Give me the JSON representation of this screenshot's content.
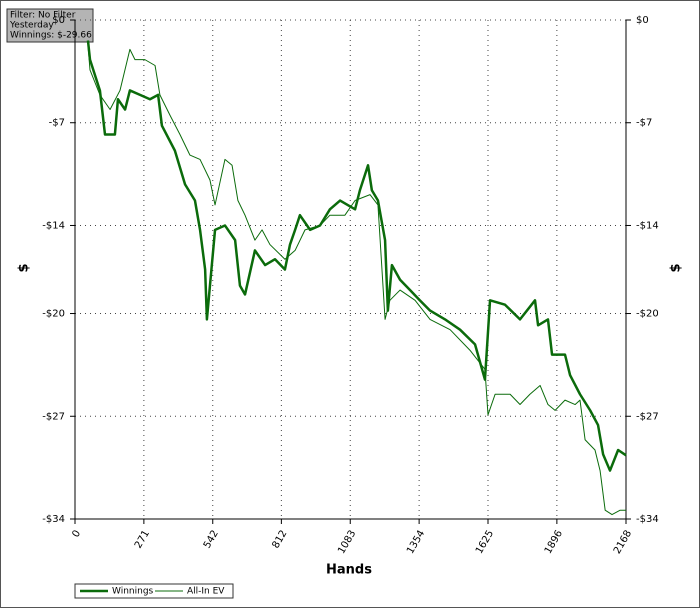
{
  "chart_data": {
    "type": "line",
    "annotation": [
      "Filter: No Filter",
      "Yesterday",
      "Winnings: $-29.66"
    ],
    "xlabel": "Hands",
    "ylabel": "$",
    "xlim": [
      0,
      2168
    ],
    "xticks": [
      0,
      271,
      542,
      812,
      1083,
      1354,
      1625,
      1896,
      2168
    ],
    "ylim": [
      -34,
      0
    ],
    "yticks": [
      {
        "value": 0,
        "label": "$0"
      },
      {
        "value": -7,
        "label": "-$7"
      },
      {
        "value": -14,
        "label": "-$14"
      },
      {
        "value": -20,
        "label": "-$20"
      },
      {
        "value": -27,
        "label": "-$27"
      },
      {
        "value": -34,
        "label": "-$34"
      }
    ],
    "grid": true,
    "series": [
      {
        "name": "Winnings",
        "color": "#0b6b0b",
        "x": [
          51,
          59,
          98,
          118,
          157,
          169,
          197,
          216,
          256,
          295,
          327,
          342,
          393,
          433,
          472,
          492,
          512,
          519,
          531,
          551,
          590,
          630,
          649,
          669,
          708,
          748,
          787,
          826,
          846,
          866,
          885,
          925,
          964,
          1003,
          1043,
          1102,
          1121,
          1153,
          1168,
          1192,
          1220,
          1231,
          1247,
          1279,
          1318,
          1357,
          1397,
          1456,
          1515,
          1574,
          1613,
          1633,
          1692,
          1751,
          1810,
          1822,
          1861,
          1877,
          1928,
          1948,
          1987,
          2027,
          2058,
          2078,
          2105,
          2137,
          2168
        ],
        "values": [
          -1.4,
          -2.7,
          -4.8,
          -7.8,
          -7.8,
          -5.4,
          -6.1,
          -4.8,
          -5.1,
          -5.4,
          -5.1,
          -7.2,
          -8.9,
          -11.2,
          -12.3,
          -14.3,
          -17.0,
          -20.4,
          -18.1,
          -14.3,
          -14.0,
          -15.0,
          -18.1,
          -18.7,
          -15.7,
          -16.7,
          -16.3,
          -17.0,
          -15.3,
          -14.3,
          -13.3,
          -14.3,
          -14.0,
          -12.9,
          -12.3,
          -12.9,
          -11.6,
          -9.9,
          -11.6,
          -12.3,
          -15.0,
          -19.8,
          -16.7,
          -17.7,
          -18.4,
          -19.1,
          -19.8,
          -20.4,
          -21.1,
          -22.1,
          -24.5,
          -19.1,
          -19.4,
          -20.4,
          -19.1,
          -20.8,
          -20.4,
          -22.8,
          -22.8,
          -24.2,
          -25.5,
          -26.6,
          -27.6,
          -29.6,
          -30.7,
          -29.3,
          -29.66
        ]
      },
      {
        "name": "All-In EV",
        "color": "#0b6b0b",
        "x": [
          51,
          59,
          98,
          138,
          177,
          216,
          236,
          275,
          315,
          334,
          374,
          413,
          452,
          492,
          531,
          551,
          590,
          618,
          641,
          669,
          708,
          736,
          767,
          826,
          866,
          905,
          964,
          1003,
          1062,
          1102,
          1161,
          1192,
          1220,
          1239,
          1279,
          1338,
          1397,
          1476,
          1554,
          1613,
          1625,
          1653,
          1712,
          1751,
          1790,
          1830,
          1861,
          1889,
          1928,
          1968,
          1987,
          2007,
          2046,
          2066,
          2086,
          2113,
          2145,
          2168
        ],
        "values": [
          -1.7,
          -3.4,
          -5.1,
          -6.1,
          -4.8,
          -2.0,
          -2.7,
          -2.7,
          -3.1,
          -5.1,
          -6.5,
          -7.8,
          -9.2,
          -9.5,
          -10.9,
          -12.6,
          -9.5,
          -9.9,
          -12.3,
          -13.3,
          -15.0,
          -14.3,
          -15.3,
          -16.3,
          -15.7,
          -14.3,
          -14.0,
          -13.3,
          -13.3,
          -12.3,
          -11.9,
          -12.6,
          -20.4,
          -19.1,
          -18.4,
          -19.1,
          -20.4,
          -21.1,
          -22.5,
          -23.8,
          -26.9,
          -25.5,
          -25.5,
          -26.2,
          -25.5,
          -24.9,
          -26.2,
          -26.6,
          -25.9,
          -26.2,
          -25.9,
          -28.6,
          -29.3,
          -30.7,
          -33.4,
          -33.7,
          -33.4,
          -33.4
        ]
      }
    ]
  }
}
